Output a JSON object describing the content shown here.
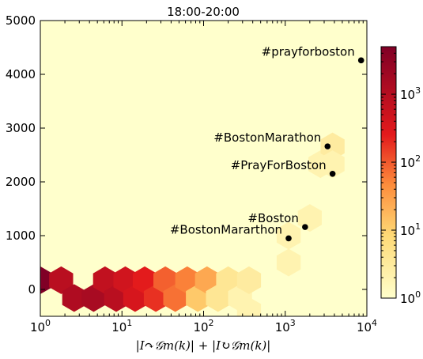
{
  "chart_data": {
    "type": "hexbin",
    "title": "18:00-20:00",
    "xlabel": "|I↷𝒢m(k)| + |I↻𝒢m(k)|",
    "ylabel": "",
    "xscale": "log",
    "xlim": [
      1,
      10000
    ],
    "ylim": [
      -500,
      5000
    ],
    "x_ticks": [
      {
        "value": 1,
        "base": "10",
        "exp": "0"
      },
      {
        "value": 10,
        "base": "10",
        "exp": "1"
      },
      {
        "value": 100,
        "base": "10",
        "exp": "2"
      },
      {
        "value": 1000,
        "base": "10",
        "exp": "3"
      },
      {
        "value": 10000,
        "base": "10",
        "exp": "4"
      }
    ],
    "y_ticks": [
      "0",
      "1000",
      "2000",
      "3000",
      "4000",
      "5000"
    ],
    "colorbar": {
      "scale": "log",
      "range": [
        1,
        5000
      ],
      "ticks": [
        {
          "value": 1,
          "base": "10",
          "exp": "0"
        },
        {
          "value": 10,
          "base": "10",
          "exp": "1"
        },
        {
          "value": 100,
          "base": "10",
          "exp": "2"
        },
        {
          "value": 1000,
          "base": "10",
          "exp": "3"
        }
      ]
    },
    "background_color": "#ffffcc",
    "hexbins": [
      {
        "x": 1.0,
        "y": 170,
        "count": 5000
      },
      {
        "x": 1.8,
        "y": 170,
        "count": 900
      },
      {
        "x": 2.6,
        "y": -160,
        "count": 1200
      },
      {
        "x": 4.5,
        "y": -160,
        "count": 1500
      },
      {
        "x": 6.2,
        "y": 170,
        "count": 700
      },
      {
        "x": 8.5,
        "y": -160,
        "count": 900
      },
      {
        "x": 11,
        "y": 170,
        "count": 450
      },
      {
        "x": 14.5,
        "y": -160,
        "count": 380
      },
      {
        "x": 19,
        "y": 170,
        "count": 250
      },
      {
        "x": 26,
        "y": -160,
        "count": 180
      },
      {
        "x": 34,
        "y": 170,
        "count": 90
      },
      {
        "x": 45,
        "y": -160,
        "count": 70
      },
      {
        "x": 63,
        "y": 170,
        "count": 55
      },
      {
        "x": 85,
        "y": -160,
        "count": 12
      },
      {
        "x": 110,
        "y": 170,
        "count": 25
      },
      {
        "x": 150,
        "y": -160,
        "count": 4
      },
      {
        "x": 200,
        "y": 170,
        "count": 4
      },
      {
        "x": 280,
        "y": -160,
        "count": 2
      },
      {
        "x": 360,
        "y": 170,
        "count": 3
      },
      {
        "x": 360,
        "y": -400,
        "count": 2
      },
      {
        "x": 1100,
        "y": 500,
        "count": 2
      },
      {
        "x": 1100,
        "y": 1000,
        "count": 2
      },
      {
        "x": 2000,
        "y": 1330,
        "count": 2
      },
      {
        "x": 2700,
        "y": 2330,
        "count": 2
      },
      {
        "x": 3800,
        "y": 2660,
        "count": 3
      },
      {
        "x": 3800,
        "y": 2330,
        "count": 2
      }
    ],
    "points": [
      {
        "label": "#prayforboston",
        "x": 8500,
        "y": 4260
      },
      {
        "label": "#BostonMarathon",
        "x": 3300,
        "y": 2660
      },
      {
        "label": "#PrayForBoston",
        "x": 3800,
        "y": 2150
      },
      {
        "label": "#Boston",
        "x": 1750,
        "y": 1160
      },
      {
        "label": "#BostonMararthon",
        "x": 1100,
        "y": 950
      }
    ]
  }
}
